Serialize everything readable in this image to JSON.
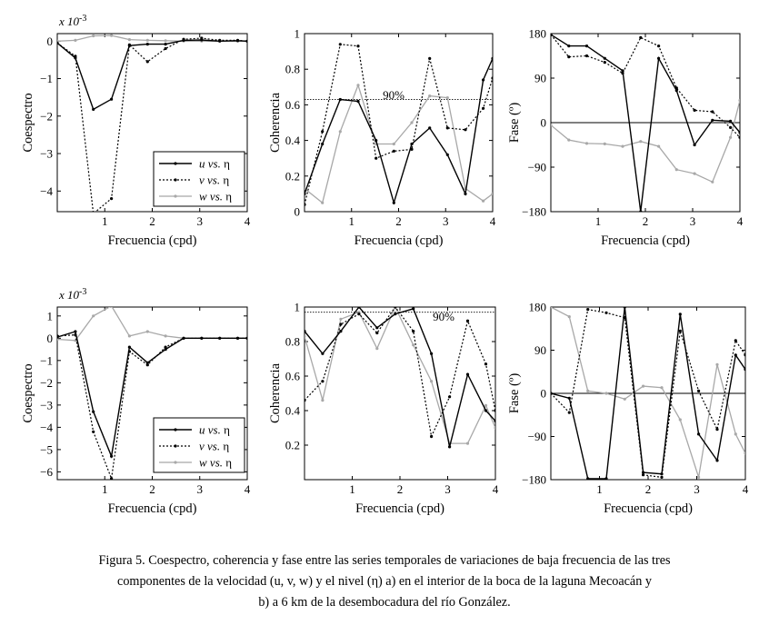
{
  "colors": {
    "u": "#000000",
    "v": "#000000",
    "w": "#a8a8a8",
    "ref": "#000000"
  },
  "caption": {
    "line1": "Figura 5. Coespectro, coherencia y fase entre las series temporales de variaciones de baja frecuencia de las tres",
    "line2": "componentes de la velocidad (u, v, w) y el nivel (η) a) en el interior de la boca de la laguna Mecoacán y",
    "line3": "b) a 6 km de la desembocadura del río González."
  },
  "chart_data": [
    {
      "type": "line",
      "panel": "a-coespectro",
      "ylabel": "Coespectro",
      "xlabel": "Frecuencia (cpd)",
      "exponent": "x 10",
      "exponent_power": "-3",
      "xlim": [
        0,
        4
      ],
      "ylim": [
        -4.55,
        0.2
      ],
      "xticks": [
        1,
        2,
        3,
        4
      ],
      "yticks": [
        0,
        -1,
        -2,
        -3,
        -4
      ],
      "legend": [
        "u vs. η",
        "v vs. η",
        "w vs. η"
      ],
      "x": [
        0,
        0.38,
        0.76,
        1.14,
        1.52,
        1.9,
        2.28,
        2.66,
        3.04,
        3.42,
        3.8,
        4.0
      ],
      "series": [
        {
          "name": "u vs. η",
          "values": [
            -0.05,
            -0.45,
            -1.82,
            -1.55,
            -0.12,
            -0.08,
            -0.08,
            0.02,
            0.03,
            0.0,
            0.01,
            0.0
          ]
        },
        {
          "name": "v vs. η",
          "values": [
            -0.05,
            -0.4,
            -4.6,
            -4.2,
            -0.1,
            -0.55,
            -0.2,
            0.05,
            0.08,
            0.02,
            0.02,
            0.0
          ]
        },
        {
          "name": "w vs. η",
          "values": [
            0.0,
            0.02,
            0.14,
            0.15,
            0.04,
            0.02,
            0.01,
            0.0,
            0.0,
            0.0,
            0.0,
            0.0
          ]
        }
      ]
    },
    {
      "type": "line",
      "panel": "a-coherencia",
      "ylabel": "Coherencia",
      "xlabel": "Frecuencia (cpd)",
      "xlim": [
        0,
        4
      ],
      "ylim": [
        0,
        1
      ],
      "xticks": [
        1,
        2,
        3,
        4
      ],
      "yticks": [
        0,
        0.2,
        0.4,
        0.6,
        0.8,
        1
      ],
      "reference": {
        "value": 0.63,
        "label": "90%"
      },
      "x": [
        0,
        0.38,
        0.76,
        1.14,
        1.52,
        1.9,
        2.28,
        2.66,
        3.04,
        3.42,
        3.8,
        4.0
      ],
      "series": [
        {
          "name": "u vs. η",
          "values": [
            0.1,
            0.38,
            0.63,
            0.62,
            0.4,
            0.05,
            0.38,
            0.47,
            0.32,
            0.1,
            0.74,
            0.86
          ]
        },
        {
          "name": "v vs. η",
          "values": [
            0.04,
            0.45,
            0.94,
            0.93,
            0.3,
            0.34,
            0.35,
            0.86,
            0.47,
            0.46,
            0.58,
            0.75
          ]
        },
        {
          "name": "w vs. η",
          "values": [
            0.13,
            0.05,
            0.45,
            0.71,
            0.38,
            0.38,
            0.5,
            0.65,
            0.64,
            0.13,
            0.06,
            0.1
          ]
        }
      ]
    },
    {
      "type": "line",
      "panel": "a-fase",
      "ylabel": "Fase (º)",
      "xlabel": "Frecuencia (cpd)",
      "xlim": [
        0,
        4
      ],
      "ylim": [
        -180,
        180
      ],
      "xticks": [
        1,
        2,
        3,
        4
      ],
      "yticks": [
        180,
        90,
        0,
        -90,
        -180
      ],
      "x": [
        0,
        0.38,
        0.76,
        1.14,
        1.52,
        1.9,
        2.28,
        2.66,
        3.04,
        3.42,
        3.8,
        4.0
      ],
      "series": [
        {
          "name": "u vs. η",
          "values": [
            178,
            155,
            155,
            130,
            105,
            -180,
            130,
            65,
            -45,
            5,
            3,
            -20
          ]
        },
        {
          "name": "v vs. η",
          "values": [
            178,
            133,
            135,
            122,
            100,
            172,
            155,
            70,
            25,
            22,
            -10,
            -30
          ]
        },
        {
          "name": "w vs. η",
          "values": [
            -5,
            -35,
            -42,
            -43,
            -48,
            -38,
            -48,
            -95,
            -103,
            -120,
            -30,
            45
          ]
        }
      ]
    },
    {
      "type": "line",
      "panel": "b-coespectro",
      "ylabel": "Coespectro",
      "xlabel": "Frecuencia (cpd)",
      "exponent": "x 10",
      "exponent_power": "-3",
      "xlim": [
        0,
        4
      ],
      "ylim": [
        -6.35,
        1.4
      ],
      "xticks": [
        1,
        2,
        3,
        4
      ],
      "yticks": [
        1,
        0,
        -1,
        -2,
        -3,
        -4,
        -5,
        -6
      ],
      "legend": [
        "u vs. η",
        "v vs. η",
        "w vs. η"
      ],
      "x": [
        0,
        0.38,
        0.76,
        1.14,
        1.52,
        1.9,
        2.28,
        2.66,
        3.04,
        3.42,
        3.8,
        4.0
      ],
      "series": [
        {
          "name": "u vs. η",
          "values": [
            0.05,
            0.3,
            -3.3,
            -5.3,
            -0.4,
            -1.1,
            -0.5,
            0.0,
            0.0,
            0.0,
            0.0,
            0.0
          ]
        },
        {
          "name": "v vs. η",
          "values": [
            0.1,
            0.15,
            -4.2,
            -6.3,
            -0.6,
            -1.2,
            -0.4,
            0.0,
            0.0,
            0.0,
            0.0,
            0.0
          ]
        },
        {
          "name": "w vs. η",
          "values": [
            -0.05,
            -0.1,
            1.0,
            1.45,
            0.1,
            0.3,
            0.1,
            0.0,
            0.0,
            0.0,
            0.0,
            0.0
          ]
        }
      ]
    },
    {
      "type": "line",
      "panel": "b-coherencia",
      "ylabel": "Coherencia",
      "xlabel": "Frecuencia (cpd)",
      "xlim": [
        0,
        4
      ],
      "ylim": [
        0,
        1
      ],
      "xticks": [
        1,
        2,
        3,
        4
      ],
      "yticks": [
        0.2,
        0.4,
        0.6,
        0.8,
        1
      ],
      "reference": {
        "value": 0.97,
        "label": "90%"
      },
      "x": [
        0,
        0.38,
        0.76,
        1.14,
        1.52,
        1.9,
        2.28,
        2.66,
        3.04,
        3.42,
        3.8,
        4.0
      ],
      "series": [
        {
          "name": "u vs. η",
          "values": [
            0.86,
            0.73,
            0.86,
            1.0,
            0.88,
            0.96,
            0.99,
            0.73,
            0.19,
            0.61,
            0.4,
            0.34
          ]
        },
        {
          "name": "v vs. η",
          "values": [
            0.46,
            0.57,
            0.9,
            0.96,
            0.85,
            1.0,
            0.86,
            0.25,
            0.48,
            0.92,
            0.67,
            0.4
          ]
        },
        {
          "name": "w vs. η",
          "values": [
            0.83,
            0.46,
            0.93,
            0.97,
            0.76,
            1.0,
            0.78,
            0.57,
            0.21,
            0.21,
            0.43,
            0.3
          ]
        }
      ]
    },
    {
      "type": "line",
      "panel": "b-fase",
      "ylabel": "Fase (º)",
      "xlabel": "Frecuencia (cpd)",
      "xlim": [
        0,
        4
      ],
      "ylim": [
        -180,
        180
      ],
      "xticks": [
        1,
        2,
        3,
        4
      ],
      "yticks": [
        180,
        90,
        0,
        -90,
        -180
      ],
      "x": [
        0,
        0.38,
        0.76,
        1.14,
        1.52,
        1.9,
        2.28,
        2.66,
        3.04,
        3.42,
        3.8,
        4.0
      ],
      "series": [
        {
          "name": "u vs. η",
          "values": [
            0,
            -10,
            -178,
            -178,
            180,
            -165,
            -168,
            165,
            -85,
            -140,
            80,
            50
          ]
        },
        {
          "name": "v vs. η",
          "values": [
            0,
            -40,
            175,
            168,
            158,
            -170,
            -175,
            130,
            5,
            -75,
            110,
            80
          ]
        },
        {
          "name": "w vs. η",
          "values": [
            180,
            160,
            5,
            0,
            -12,
            15,
            12,
            -55,
            -175,
            60,
            -85,
            -125
          ]
        }
      ]
    }
  ]
}
